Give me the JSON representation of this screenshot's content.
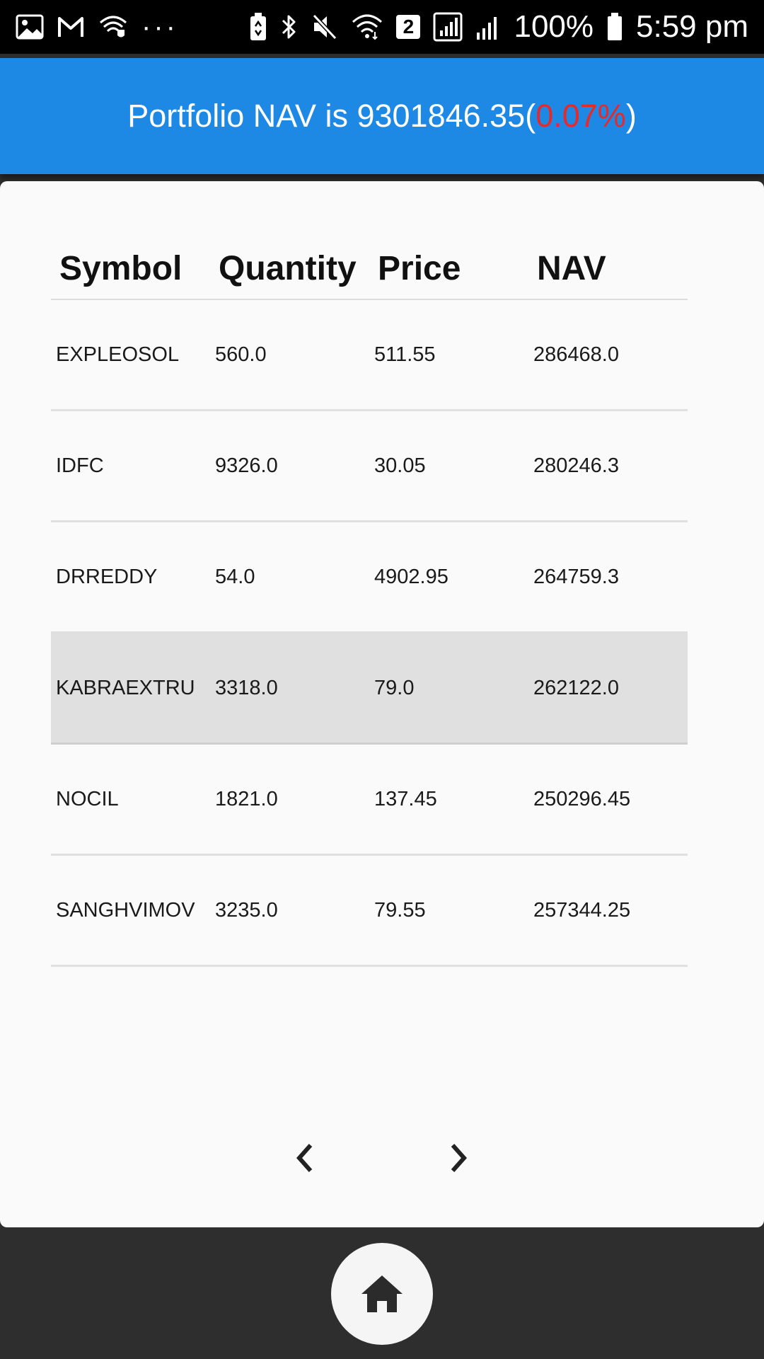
{
  "status_bar": {
    "left_icons": [
      "gallery-icon",
      "gmail-icon",
      "wifi-secure-icon",
      "more-dots-icon"
    ],
    "more_dots": "···",
    "sim_badge": "2",
    "battery_percent": "100%",
    "time": "5:59 pm"
  },
  "header": {
    "prefix": "Portfolio NAV is 9301846.35(",
    "change": "0.07%",
    "suffix": ")",
    "background_color": "#1e88e5",
    "change_color": "#e52a2a"
  },
  "table": {
    "columns": [
      "Symbol",
      "Quantity",
      "Price",
      "NAV"
    ],
    "rows": [
      {
        "symbol": "EXPLEOSOL",
        "quantity": "560.0",
        "price": "511.55",
        "nav": "286468.0"
      },
      {
        "symbol": "IDFC",
        "quantity": "9326.0",
        "price": "30.05",
        "nav": "280246.3"
      },
      {
        "symbol": "DRREDDY",
        "quantity": "54.0",
        "price": "4902.95",
        "nav": "264759.3"
      },
      {
        "symbol": "KABRAEXTRU",
        "quantity": "3318.0",
        "price": "79.0",
        "nav": "262122.0"
      },
      {
        "symbol": "NOCIL",
        "quantity": "1821.0",
        "price": "137.45",
        "nav": "250296.45"
      },
      {
        "symbol": "SANGHVIMOV",
        "quantity": "3235.0",
        "price": "79.55",
        "nav": "257344.25"
      }
    ],
    "selected_row": "KABRAEXTRU"
  },
  "pager": {
    "prev_icon": "chevron-left-icon",
    "next_icon": "chevron-right-icon"
  },
  "bottom_bar": {
    "home_icon": "home-icon"
  }
}
